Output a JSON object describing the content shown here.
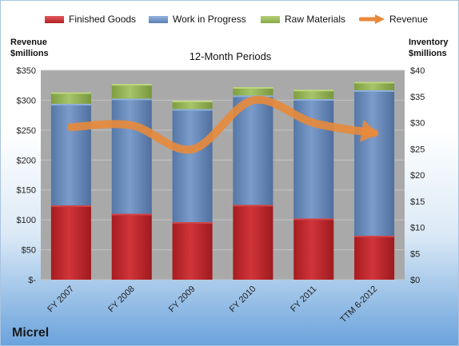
{
  "company": "Micrel",
  "chart_data": {
    "type": "bar",
    "stacked": true,
    "title": "12-Month Periods",
    "categories": [
      "FY 2007",
      "FY 2008",
      "FY 2009",
      "FY 2010",
      "FY 2011",
      "TTM 6-2012"
    ],
    "left_axis": {
      "title_line1": "Revenue",
      "title_line2": "$millions",
      "ylim": [
        0,
        350
      ],
      "ticks": [
        "$-",
        "$50",
        "$100",
        "$150",
        "$200",
        "$250",
        "$300",
        "$350"
      ]
    },
    "right_axis": {
      "title_line1": "Inventory",
      "title_line2": "$millions",
      "ylim": [
        0,
        40
      ],
      "ticks": [
        "$0",
        "$5",
        "$10",
        "$15",
        "$20",
        "$25",
        "$30",
        "$35",
        "$40"
      ]
    },
    "series": [
      {
        "name": "Finished Goods",
        "axis": "right",
        "color": "#c0262a",
        "values": [
          14.2,
          12.6,
          11.0,
          14.3,
          11.7,
          8.4
        ]
      },
      {
        "name": "Work in Progress",
        "axis": "right",
        "color": "#6a8fc0",
        "values": [
          19.4,
          22.0,
          21.6,
          20.9,
          22.8,
          27.8
        ]
      },
      {
        "name": "Raw Materials",
        "axis": "right",
        "color": "#9bbb59",
        "values": [
          2.2,
          2.8,
          1.6,
          1.6,
          1.8,
          1.6
        ]
      },
      {
        "name": "Revenue",
        "axis": "left",
        "type": "line",
        "color": "#e8893a",
        "values": [
          255,
          258,
          218,
          300,
          262,
          245
        ]
      }
    ],
    "legend_position": "top",
    "grid": true
  }
}
